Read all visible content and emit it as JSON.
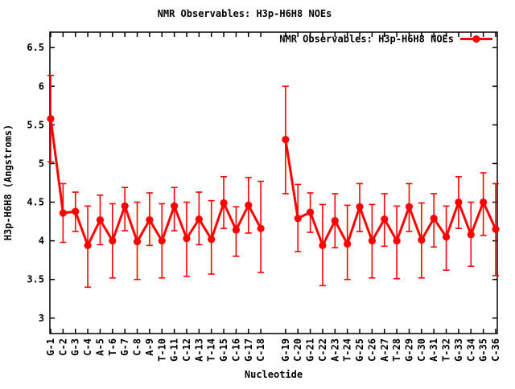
{
  "window": {
    "background": "#ffffff"
  },
  "chart_data": {
    "type": "line",
    "title": "NMR Observables: H3p-H6H8 NOEs",
    "xlabel": "Nucleotide",
    "ylabel": "H3p-H6H8 (Angstroms)",
    "legend": {
      "label": "NMR Observables: H3p-H6H8 NOEs",
      "position": "top-right-inside",
      "marker": "filled-circle-on-line"
    },
    "series_color": "#ff0000",
    "grid": false,
    "error_bars": true,
    "ylim": [
      2.8,
      6.7
    ],
    "yticks": [
      "3",
      "3.5",
      "4",
      "4.5",
      "5",
      "5.5",
      "6",
      "6.5"
    ],
    "ytick_values": [
      3,
      3.5,
      4,
      4.5,
      5,
      5.5,
      6,
      6.5
    ],
    "x_slot_count": 37,
    "gap_slot": 19,
    "points": [
      {
        "label": "G-1",
        "slot": 1,
        "y": 5.58,
        "lo": 5.02,
        "hi": 6.14
      },
      {
        "label": "C-2",
        "slot": 2,
        "y": 4.36,
        "lo": 3.98,
        "hi": 4.74
      },
      {
        "label": "G-3",
        "slot": 3,
        "y": 4.38,
        "lo": 4.12,
        "hi": 4.63
      },
      {
        "label": "C-4",
        "slot": 4,
        "y": 3.94,
        "lo": 3.4,
        "hi": 4.45
      },
      {
        "label": "A-5",
        "slot": 5,
        "y": 4.27,
        "lo": 3.95,
        "hi": 4.59
      },
      {
        "label": "T-6",
        "slot": 6,
        "y": 4.0,
        "lo": 3.52,
        "hi": 4.48
      },
      {
        "label": "G-7",
        "slot": 7,
        "y": 4.45,
        "lo": 4.13,
        "hi": 4.69
      },
      {
        "label": "C-8",
        "slot": 8,
        "y": 3.99,
        "lo": 3.5,
        "hi": 4.5
      },
      {
        "label": "A-9",
        "slot": 9,
        "y": 4.27,
        "lo": 3.94,
        "hi": 4.62
      },
      {
        "label": "T-10",
        "slot": 10,
        "y": 4.0,
        "lo": 3.52,
        "hi": 4.48
      },
      {
        "label": "G-11",
        "slot": 11,
        "y": 4.45,
        "lo": 4.13,
        "hi": 4.69
      },
      {
        "label": "C-12",
        "slot": 12,
        "y": 4.03,
        "lo": 3.54,
        "hi": 4.5
      },
      {
        "label": "A-13",
        "slot": 13,
        "y": 4.28,
        "lo": 3.95,
        "hi": 4.63
      },
      {
        "label": "T-14",
        "slot": 14,
        "y": 4.02,
        "lo": 3.57,
        "hi": 4.52
      },
      {
        "label": "G-15",
        "slot": 15,
        "y": 4.49,
        "lo": 4.16,
        "hi": 4.83
      },
      {
        "label": "C-16",
        "slot": 16,
        "y": 4.14,
        "lo": 3.8,
        "hi": 4.44
      },
      {
        "label": "G-17",
        "slot": 17,
        "y": 4.46,
        "lo": 4.1,
        "hi": 4.82
      },
      {
        "label": "C-18",
        "slot": 18,
        "y": 4.16,
        "lo": 3.59,
        "hi": 4.77
      },
      {
        "label": "G-19",
        "slot": 20,
        "y": 5.31,
        "lo": 4.61,
        "hi": 6.0
      },
      {
        "label": "C-20",
        "slot": 21,
        "y": 4.29,
        "lo": 3.86,
        "hi": 4.73
      },
      {
        "label": "G-21",
        "slot": 22,
        "y": 4.37,
        "lo": 4.11,
        "hi": 4.62
      },
      {
        "label": "C-22",
        "slot": 23,
        "y": 3.94,
        "lo": 3.42,
        "hi": 4.47
      },
      {
        "label": "A-23",
        "slot": 24,
        "y": 4.26,
        "lo": 3.91,
        "hi": 4.61
      },
      {
        "label": "T-24",
        "slot": 25,
        "y": 3.96,
        "lo": 3.5,
        "hi": 4.46
      },
      {
        "label": "G-25",
        "slot": 26,
        "y": 4.44,
        "lo": 4.12,
        "hi": 4.74
      },
      {
        "label": "C-26",
        "slot": 27,
        "y": 4.0,
        "lo": 3.52,
        "hi": 4.47
      },
      {
        "label": "A-27",
        "slot": 28,
        "y": 4.28,
        "lo": 3.93,
        "hi": 4.61
      },
      {
        "label": "T-28",
        "slot": 29,
        "y": 4.0,
        "lo": 3.51,
        "hi": 4.45
      },
      {
        "label": "G-29",
        "slot": 30,
        "y": 4.44,
        "lo": 4.12,
        "hi": 4.74
      },
      {
        "label": "C-30",
        "slot": 31,
        "y": 4.01,
        "lo": 3.52,
        "hi": 4.49
      },
      {
        "label": "A-31",
        "slot": 32,
        "y": 4.29,
        "lo": 3.92,
        "hi": 4.61
      },
      {
        "label": "T-32",
        "slot": 33,
        "y": 4.05,
        "lo": 3.62,
        "hi": 4.45
      },
      {
        "label": "G-33",
        "slot": 34,
        "y": 4.5,
        "lo": 4.16,
        "hi": 4.83
      },
      {
        "label": "C-34",
        "slot": 35,
        "y": 4.08,
        "lo": 3.67,
        "hi": 4.5
      },
      {
        "label": "G-35",
        "slot": 36,
        "y": 4.5,
        "lo": 4.07,
        "hi": 4.88
      },
      {
        "label": "C-36",
        "slot": 37,
        "y": 4.15,
        "lo": 3.55,
        "hi": 4.74
      }
    ]
  }
}
